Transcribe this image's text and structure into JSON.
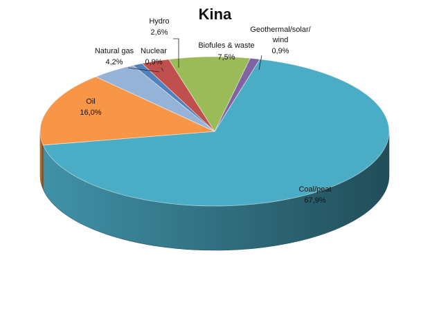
{
  "chart_data": {
    "type": "pie",
    "title": "Kina",
    "three_d": true,
    "slices": [
      {
        "label": "Coal/peat",
        "value_text": "67,9%",
        "value": 67.9,
        "color": "#4BACC6"
      },
      {
        "label": "Oil",
        "value_text": "16,0%",
        "value": 16.0,
        "color": "#F79646"
      },
      {
        "label": "Natural gas",
        "value_text": "4,2%",
        "value": 4.2,
        "color": "#95B3D7"
      },
      {
        "label": "Nuclear",
        "value_text": "0,9%",
        "value": 0.9,
        "color": "#4F81BD"
      },
      {
        "label": "Hydro",
        "value_text": "2,6%",
        "value": 2.6,
        "color": "#C0504D"
      },
      {
        "label": "Biofules & waste",
        "value_text": "7,5%",
        "value": 7.5,
        "color": "#9BBB59"
      },
      {
        "label": "Geothermal/solar/ wind",
        "value_text": "0,9%",
        "value": 0.9,
        "color": "#8064A2"
      }
    ]
  }
}
